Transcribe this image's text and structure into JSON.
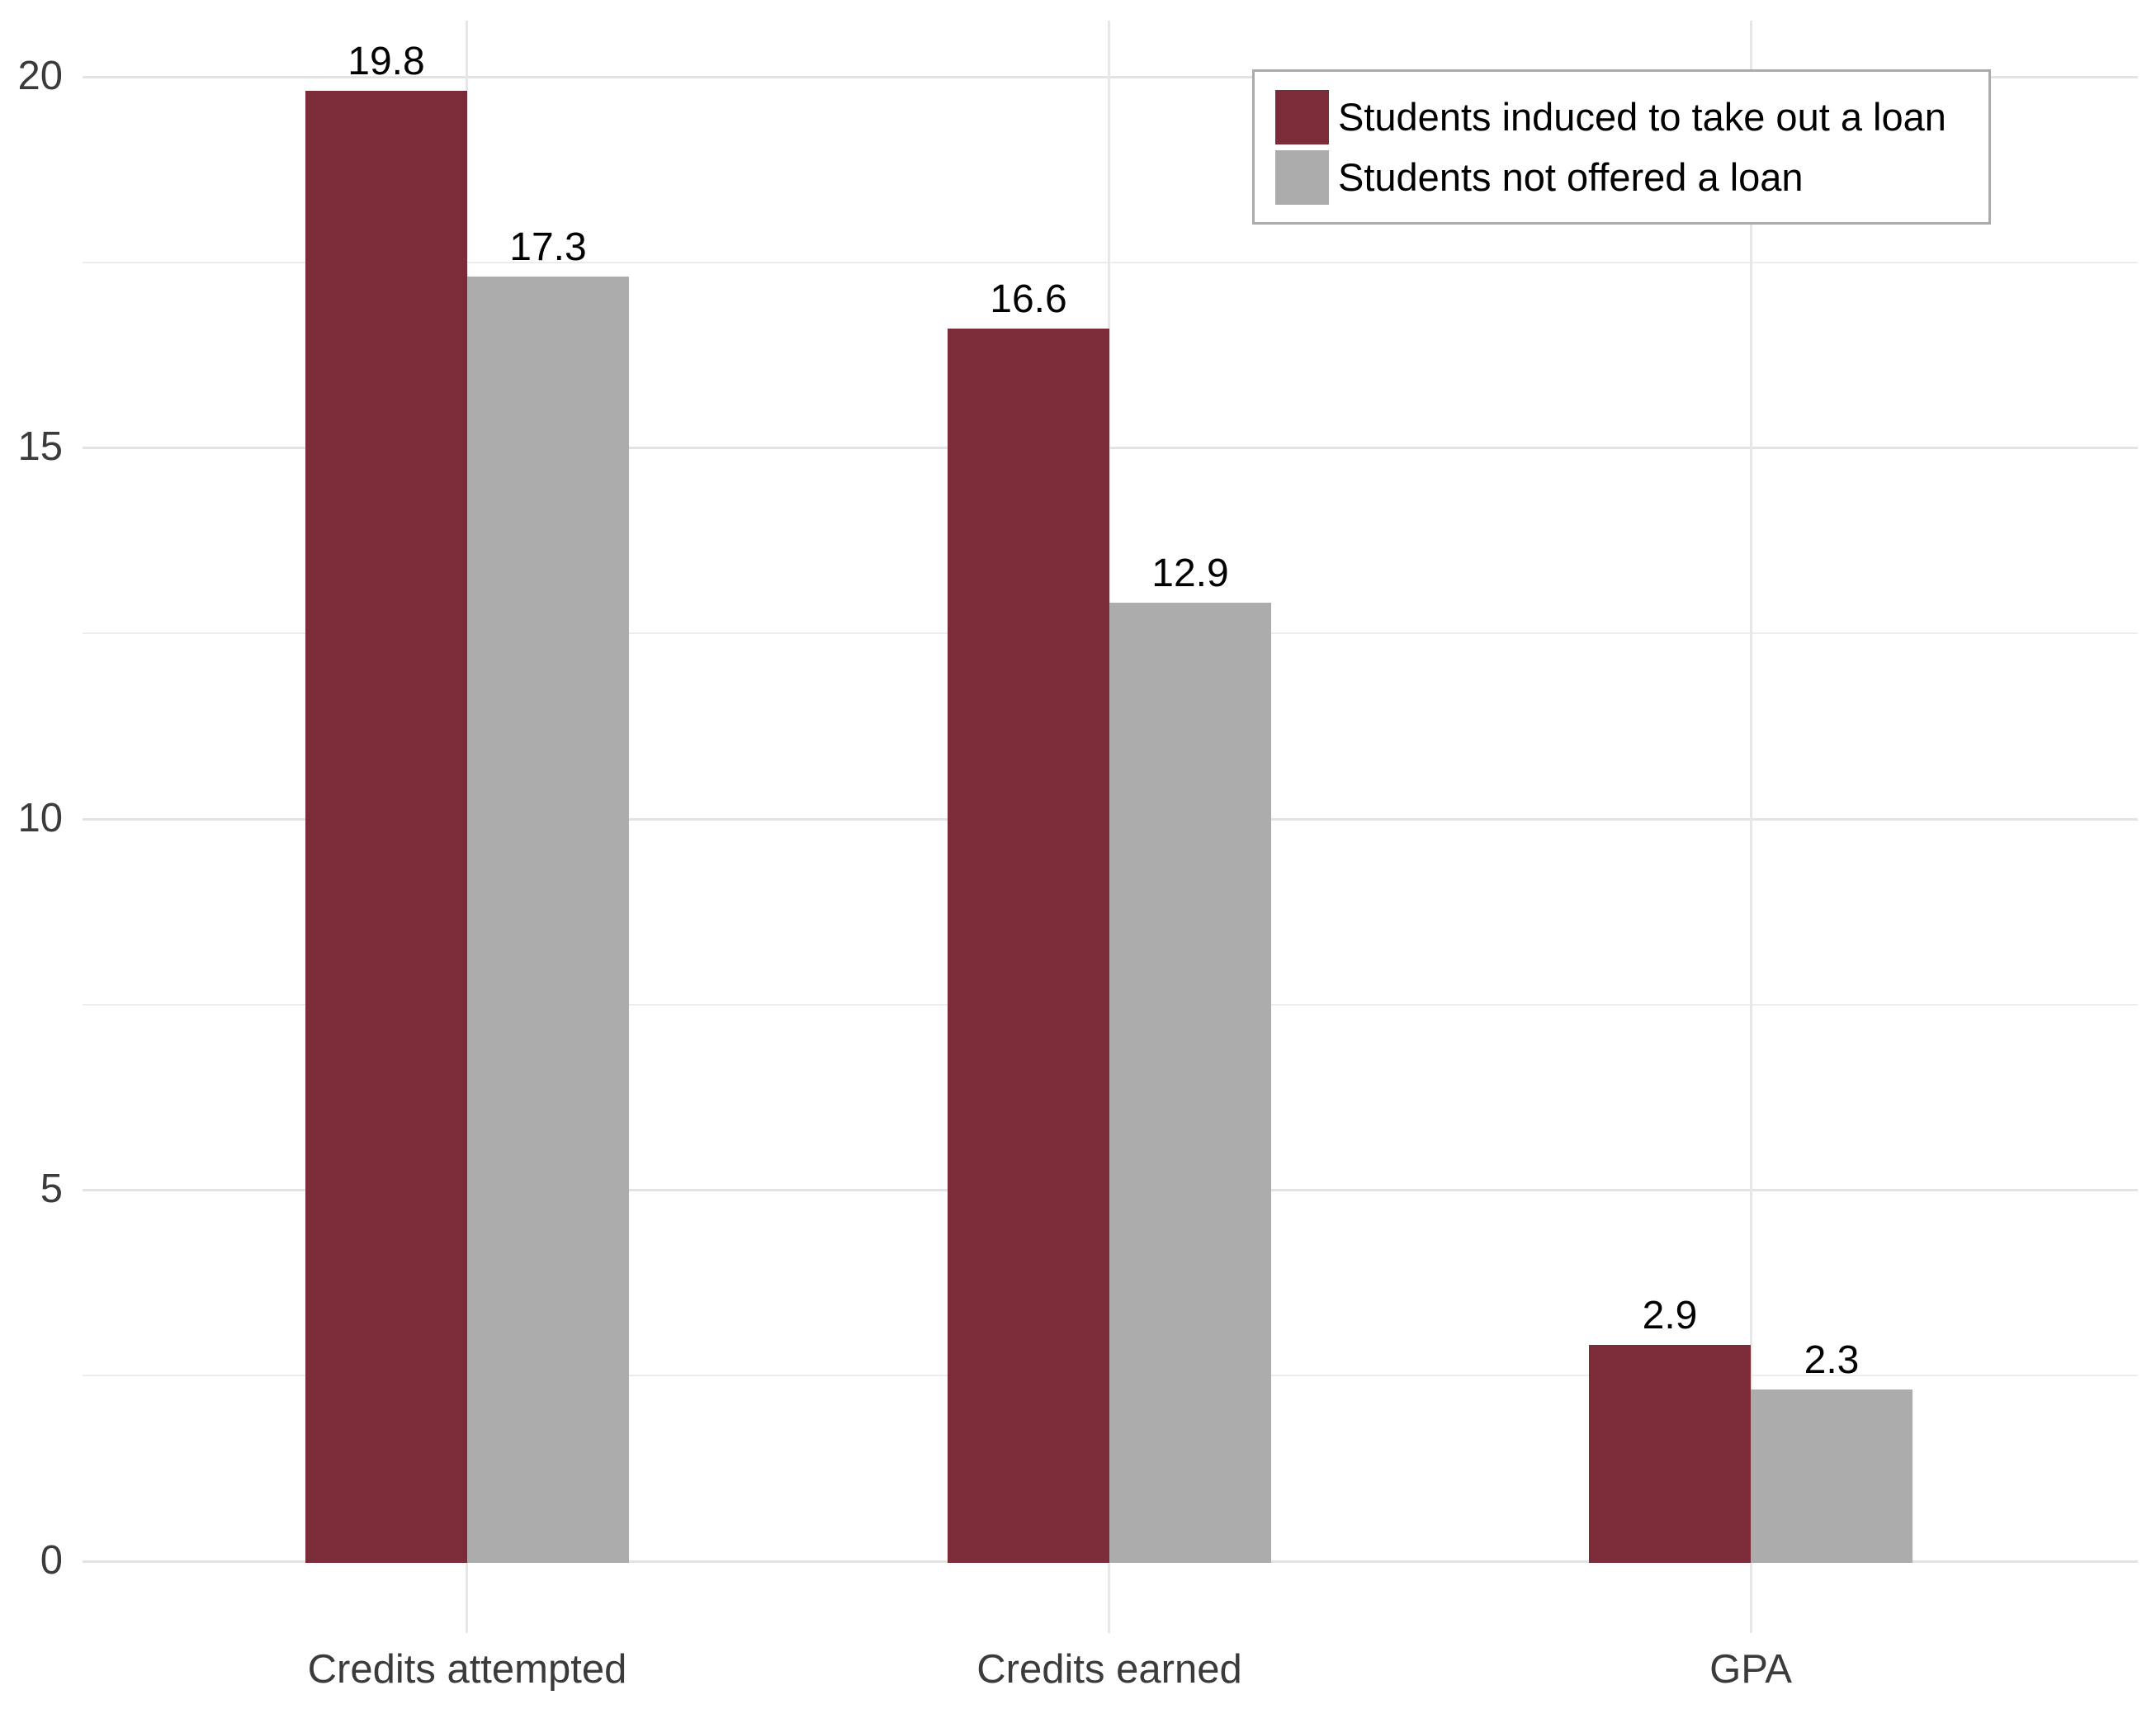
{
  "chart_data": {
    "type": "bar",
    "title": "",
    "xlabel": "",
    "ylabel": "",
    "categories": [
      "Credits attempted",
      "Credits earned",
      "GPA"
    ],
    "series": [
      {
        "name": "Students induced to take out a loan",
        "color": "#7c2c38",
        "values": [
          19.8,
          16.6,
          2.9
        ]
      },
      {
        "name": "Students not offered a loan",
        "color": "#acacac",
        "values": [
          17.3,
          12.9,
          2.3
        ]
      }
    ],
    "y_ticks": [
      20,
      15,
      10,
      5,
      0
    ],
    "ylim": [
      0,
      20.8
    ],
    "grid": "horizontal major every 5 with minor every 2.5; vertical major at category centers",
    "legend_position": "top-right inside plot",
    "background_color": "#ffffff",
    "gridline_color": "#e3e3e3",
    "axis_text_color": "#3b3b3b"
  }
}
